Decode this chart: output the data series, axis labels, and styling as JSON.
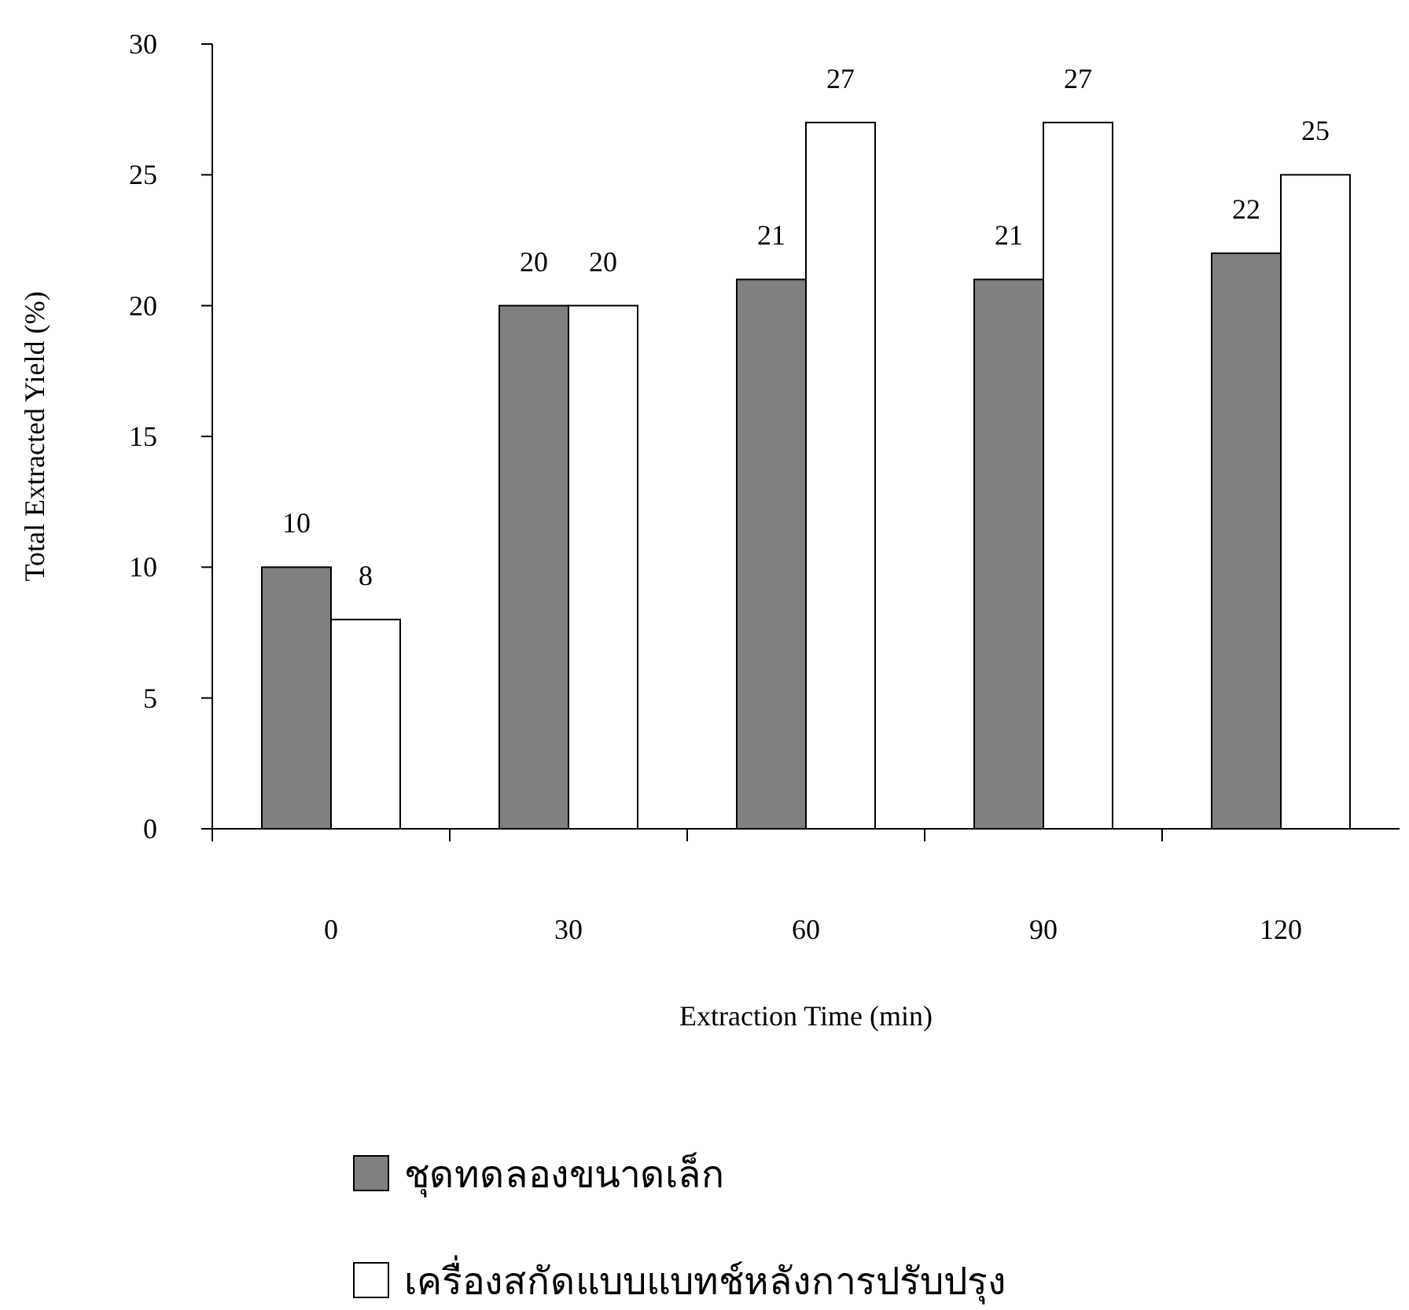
{
  "chart_data": {
    "type": "bar",
    "xlabel": "Extraction Time (min)",
    "ylabel": "Total Extracted Yield (%)",
    "categories": [
      "0",
      "30",
      "60",
      "90",
      "120"
    ],
    "series": [
      {
        "name": "ชุดทดลองขนาดเล็ก",
        "color": "#808080",
        "values": [
          10,
          20,
          21,
          21,
          22
        ]
      },
      {
        "name": "เครื่องสกัดแบบแบทช์หลังการปรับปรุง",
        "color": "#ffffff",
        "values": [
          8,
          20,
          27,
          27,
          25
        ]
      }
    ],
    "ylim": [
      0,
      30
    ],
    "yticks": [
      0,
      5,
      10,
      15,
      20,
      25,
      30
    ],
    "data_labels": true,
    "legend": "bottom",
    "grid": false
  }
}
